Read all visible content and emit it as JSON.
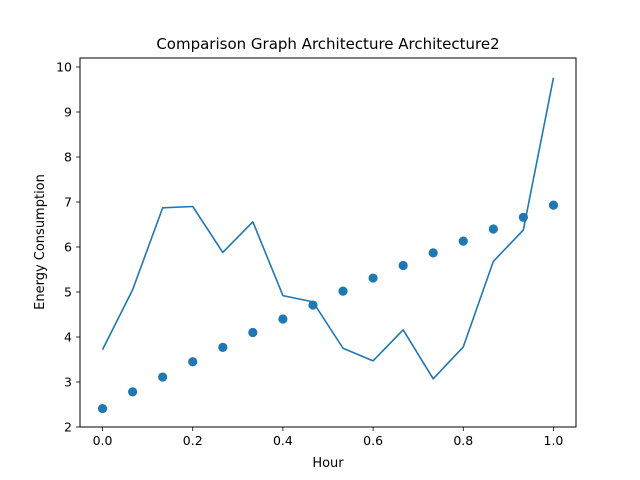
{
  "chart_data": {
    "type": "line",
    "title": "Comparison Graph Architecture Architecture2",
    "xlabel": "Hour",
    "ylabel": "Energy Consumption",
    "xlim": [
      -0.05,
      1.05
    ],
    "ylim": [
      2,
      10.2
    ],
    "xticks": [
      "0.0",
      "0.2",
      "0.4",
      "0.6",
      "0.8",
      "1.0"
    ],
    "yticks": [
      "2",
      "3",
      "4",
      "5",
      "6",
      "7",
      "8",
      "9",
      "10"
    ],
    "grid": false,
    "color": "#1f77b4",
    "x": [
      0.0,
      0.0667,
      0.1333,
      0.2,
      0.2667,
      0.3333,
      0.4,
      0.4667,
      0.5333,
      0.6,
      0.6667,
      0.7333,
      0.8,
      0.8667,
      0.9333,
      1.0
    ],
    "series": [
      {
        "style": "line",
        "values": [
          3.72,
          5.05,
          6.87,
          6.9,
          5.88,
          6.56,
          4.92,
          4.78,
          3.75,
          3.47,
          4.16,
          3.07,
          3.78,
          5.68,
          6.38,
          9.76
        ]
      },
      {
        "style": "scatter",
        "values": [
          2.41,
          2.78,
          3.11,
          3.45,
          3.77,
          4.1,
          4.4,
          4.71,
          5.02,
          5.31,
          5.59,
          5.87,
          6.13,
          6.4,
          6.66,
          6.93
        ]
      }
    ]
  }
}
